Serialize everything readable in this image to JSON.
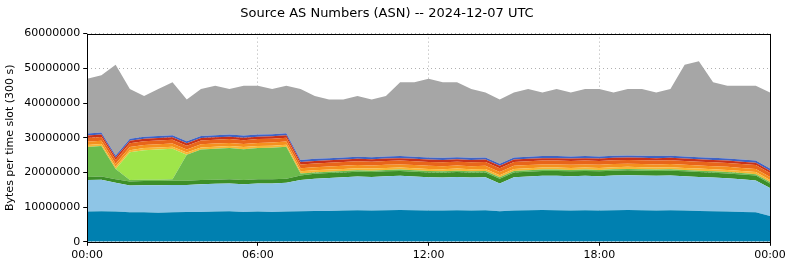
{
  "chart_data": {
    "type": "area",
    "title": "Source AS Numbers (ASN) -- 2024-12-07 UTC",
    "y_label": "Bytes per time slot (300 s)",
    "stacked": true,
    "grid": true,
    "x": [
      0,
      0.5,
      1,
      1.5,
      2,
      2.5,
      3,
      3.5,
      4,
      4.5,
      5,
      5.5,
      6,
      6.5,
      7,
      7.5,
      8,
      8.5,
      9,
      9.5,
      10,
      10.5,
      11,
      11.5,
      12,
      12.5,
      13,
      13.5,
      14,
      14.5,
      15,
      15.5,
      16,
      16.5,
      17,
      17.5,
      18,
      18.5,
      19,
      19.5,
      20,
      20.5,
      21,
      21.5,
      22,
      22.5,
      23,
      23.5,
      24
    ],
    "xlim": [
      0,
      24
    ],
    "xticks": [
      {
        "value": 0,
        "label": "00:00"
      },
      {
        "value": 6,
        "label": "06:00"
      },
      {
        "value": 12,
        "label": "12:00"
      },
      {
        "value": 18,
        "label": "18:00"
      },
      {
        "value": 24,
        "label": "00:00"
      }
    ],
    "ylim": [
      0,
      60000000
    ],
    "yticks": [
      0,
      10000000,
      20000000,
      30000000,
      40000000,
      50000000,
      60000000
    ],
    "series": [
      {
        "color": "#0080b0",
        "values": [
          8700000,
          8800000,
          8700000,
          8500000,
          8500000,
          8400000,
          8500000,
          8600000,
          8600000,
          8700000,
          8800000,
          8600000,
          8700000,
          8600000,
          8700000,
          8800000,
          8900000,
          8900000,
          9000000,
          9100000,
          9000000,
          9100000,
          9200000,
          9100000,
          9000000,
          9000000,
          9100000,
          9000000,
          9100000,
          8800000,
          9000000,
          9100000,
          9200000,
          9100000,
          9000000,
          9100000,
          9000000,
          9100000,
          9200000,
          9100000,
          9000000,
          9100000,
          9000000,
          8900000,
          8800000,
          8700000,
          8600000,
          8500000,
          7400000
        ]
      },
      {
        "color": "#8ec5e6",
        "values": [
          9100000,
          9100000,
          8300000,
          7700000,
          7800000,
          7900000,
          7900000,
          7800000,
          8000000,
          8000000,
          8000000,
          8000000,
          8100000,
          8200000,
          8300000,
          9000000,
          9300000,
          9500000,
          9600000,
          9700000,
          9700000,
          9800000,
          9800000,
          9700000,
          9600000,
          9500000,
          9600000,
          9500000,
          9500000,
          8000000,
          9600000,
          9700000,
          9800000,
          9900000,
          9900000,
          9900000,
          9900000,
          10000000,
          10000000,
          10000000,
          10000000,
          10000000,
          9900000,
          9800000,
          9700000,
          9600000,
          9400000,
          9200000,
          8100000
        ]
      },
      {
        "color": "#3d8f28",
        "values": [
          900000,
          900000,
          1000000,
          1200000,
          1200000,
          1200000,
          1200000,
          1200000,
          1200000,
          1200000,
          1200000,
          1200000,
          1200000,
          1200000,
          1200000,
          1300000,
          1400000,
          1400000,
          1400000,
          1400000,
          1400000,
          1400000,
          1400000,
          1400000,
          1400000,
          1400000,
          1400000,
          1400000,
          1400000,
          1400000,
          1400000,
          1400000,
          1400000,
          1400000,
          1400000,
          1400000,
          1400000,
          1400000,
          1400000,
          1400000,
          1400000,
          1400000,
          1400000,
          1400000,
          1400000,
          1400000,
          1400000,
          1400000,
          1300000
        ]
      },
      {
        "color": "#6cbb4c",
        "values": [
          8600000,
          8800000,
          3000000,
          400000,
          400000,
          400000,
          400000,
          7500000,
          8800000,
          8900000,
          9000000,
          8900000,
          9000000,
          9100000,
          9200000,
          600000,
          400000,
          400000,
          400000,
          400000,
          400000,
          400000,
          400000,
          400000,
          400000,
          400000,
          400000,
          400000,
          400000,
          400000,
          400000,
          400000,
          400000,
          400000,
          400000,
          400000,
          400000,
          400000,
          400000,
          400000,
          400000,
          400000,
          400000,
          400000,
          400000,
          400000,
          400000,
          400000,
          400000
        ]
      },
      {
        "color": "#9fe54a",
        "values": [
          0,
          0,
          0,
          8000000,
          8500000,
          8700000,
          8800000,
          0,
          0,
          0,
          0,
          0,
          0,
          0,
          0,
          0,
          0,
          0,
          0,
          0,
          0,
          0,
          0,
          0,
          0,
          0,
          0,
          0,
          0,
          0,
          0,
          0,
          0,
          0,
          0,
          0,
          0,
          0,
          0,
          0,
          0,
          0,
          0,
          0,
          0,
          0,
          0,
          0,
          0
        ]
      },
      {
        "color": "#f6b735",
        "values": [
          600000,
          600000,
          600000,
          600000,
          600000,
          600000,
          600000,
          600000,
          600000,
          600000,
          600000,
          600000,
          600000,
          600000,
          600000,
          600000,
          600000,
          600000,
          600000,
          600000,
          600000,
          600000,
          600000,
          600000,
          600000,
          600000,
          600000,
          600000,
          600000,
          600000,
          600000,
          600000,
          600000,
          600000,
          600000,
          600000,
          600000,
          600000,
          600000,
          600000,
          600000,
          600000,
          600000,
          600000,
          600000,
          600000,
          600000,
          600000,
          600000
        ]
      },
      {
        "color": "#f5901e",
        "values": [
          900000,
          900000,
          900000,
          900000,
          900000,
          900000,
          900000,
          900000,
          900000,
          900000,
          900000,
          900000,
          900000,
          900000,
          900000,
          900000,
          900000,
          900000,
          900000,
          900000,
          900000,
          900000,
          900000,
          900000,
          900000,
          900000,
          900000,
          900000,
          900000,
          900000,
          900000,
          900000,
          900000,
          900000,
          900000,
          900000,
          900000,
          900000,
          900000,
          900000,
          900000,
          900000,
          900000,
          900000,
          900000,
          900000,
          900000,
          900000,
          900000
        ]
      },
      {
        "color": "#e8651a",
        "values": [
          1100000,
          1100000,
          1100000,
          1100000,
          1100000,
          1100000,
          1100000,
          1100000,
          1100000,
          1100000,
          1100000,
          1100000,
          1100000,
          1100000,
          1100000,
          1100000,
          1100000,
          1100000,
          1100000,
          1100000,
          1100000,
          1100000,
          1100000,
          1100000,
          1100000,
          1100000,
          1100000,
          1100000,
          1100000,
          1100000,
          1100000,
          1100000,
          1100000,
          1100000,
          1100000,
          1100000,
          1100000,
          1100000,
          1100000,
          1100000,
          1100000,
          1100000,
          1100000,
          1100000,
          1100000,
          1100000,
          1100000,
          1100000,
          1100000
        ]
      },
      {
        "color": "#c8321a",
        "values": [
          700000,
          700000,
          700000,
          700000,
          700000,
          700000,
          700000,
          700000,
          700000,
          700000,
          700000,
          700000,
          700000,
          700000,
          700000,
          700000,
          700000,
          700000,
          700000,
          700000,
          700000,
          700000,
          700000,
          700000,
          700000,
          700000,
          700000,
          700000,
          700000,
          700000,
          700000,
          700000,
          700000,
          700000,
          700000,
          700000,
          700000,
          700000,
          700000,
          700000,
          700000,
          700000,
          700000,
          700000,
          700000,
          700000,
          700000,
          700000,
          700000
        ]
      },
      {
        "color": "#3f63c4",
        "values": [
          600000,
          600000,
          600000,
          600000,
          600000,
          600000,
          600000,
          600000,
          600000,
          600000,
          600000,
          600000,
          600000,
          600000,
          600000,
          600000,
          600000,
          600000,
          600000,
          600000,
          600000,
          600000,
          600000,
          600000,
          600000,
          600000,
          600000,
          600000,
          600000,
          600000,
          600000,
          600000,
          600000,
          600000,
          600000,
          600000,
          600000,
          600000,
          600000,
          600000,
          600000,
          600000,
          600000,
          600000,
          600000,
          600000,
          600000,
          600000,
          600000
        ]
      },
      {
        "color": "#a6a6a6",
        "values": [
          15800000,
          16500000,
          26100000,
          14300000,
          11700000,
          13500000,
          15300000,
          12000000,
          13500000,
          14300000,
          13100000,
          14400000,
          14100000,
          13000000,
          13700000,
          20400000,
          18100000,
          16900000,
          16700000,
          17500000,
          16600000,
          17400000,
          21300000,
          21500000,
          22700000,
          21800000,
          21600000,
          19800000,
          18700000,
          18500000,
          18700000,
          19500000,
          18300000,
          19300000,
          18400000,
          19300000,
          19400000,
          18200000,
          19100000,
          19200000,
          18300000,
          19200000,
          26400000,
          27600000,
          21800000,
          21000000,
          21300000,
          21600000,
          21900000
        ]
      }
    ]
  }
}
